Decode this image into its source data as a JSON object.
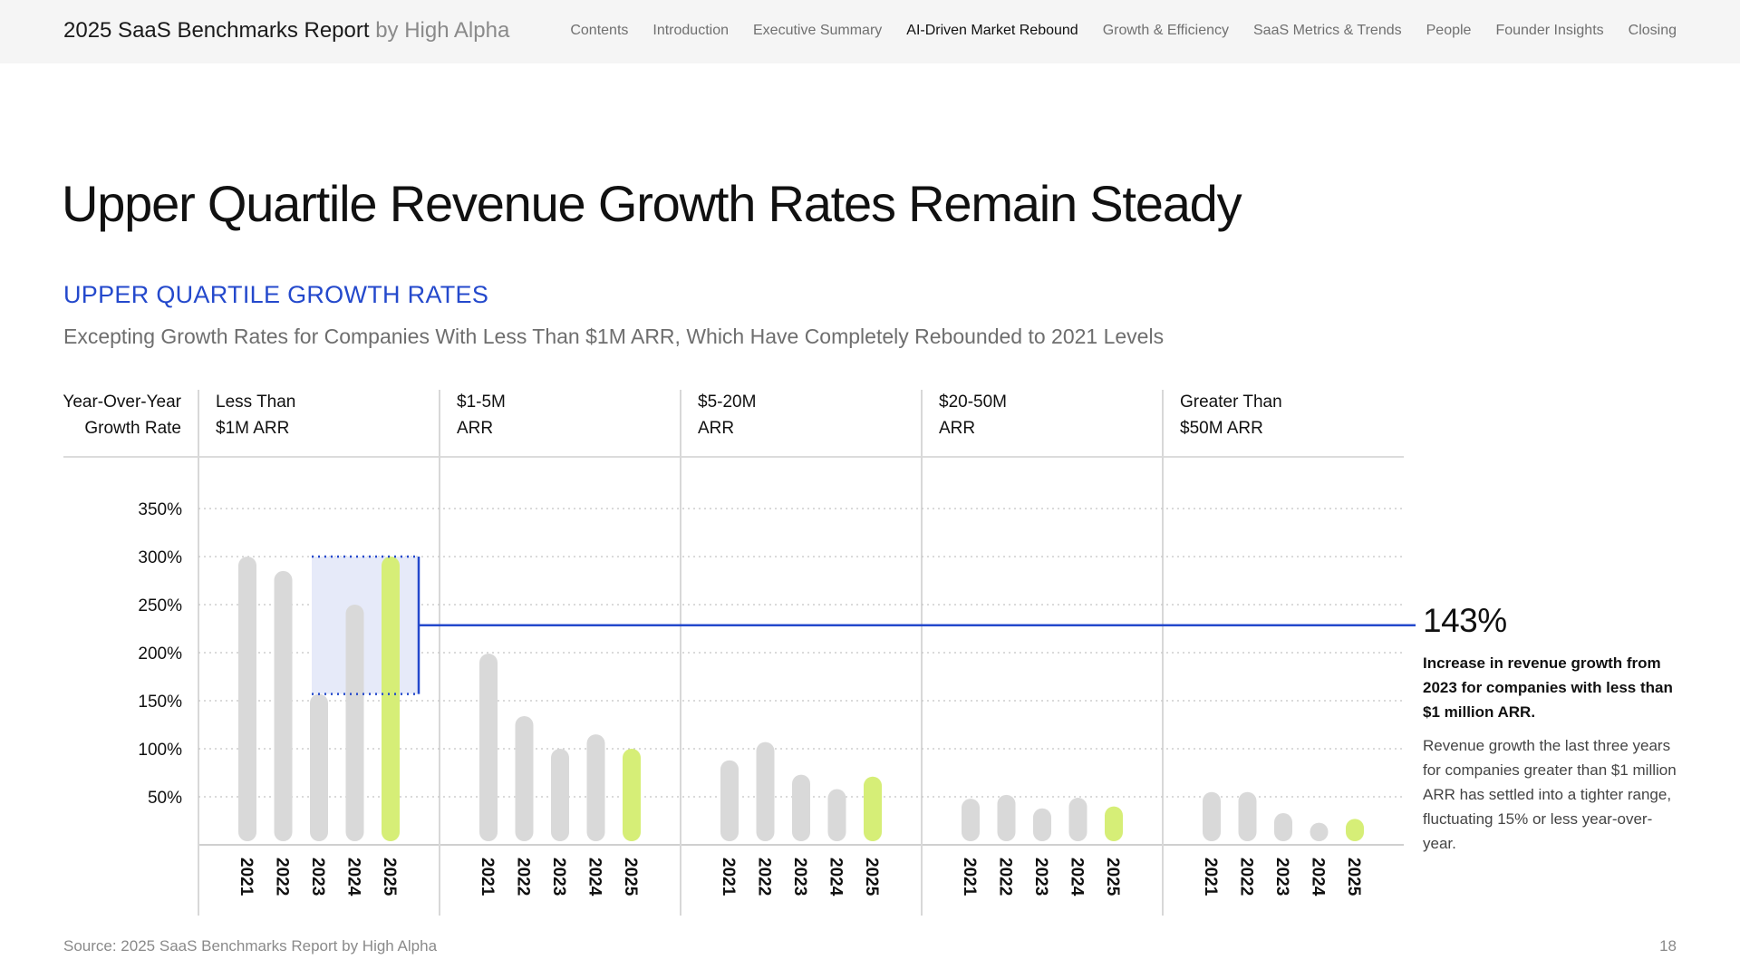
{
  "header": {
    "title": "2025 SaaS Benchmarks Report",
    "title_by": "by High Alpha",
    "nav": [
      {
        "label": "Contents",
        "active": false
      },
      {
        "label": "Introduction",
        "active": false
      },
      {
        "label": "Executive Summary",
        "active": false
      },
      {
        "label": "AI-Driven Market Rebound",
        "active": true
      },
      {
        "label": "Growth & Efficiency",
        "active": false
      },
      {
        "label": "SaaS Metrics & Trends",
        "active": false
      },
      {
        "label": "People",
        "active": false
      },
      {
        "label": "Founder Insights",
        "active": false
      },
      {
        "label": "Closing",
        "active": false
      }
    ]
  },
  "page": {
    "title": "Upper Quartile Revenue Growth Rates Remain Steady",
    "section_label": "UPPER QUARTILE GROWTH RATES",
    "subtitle": "Excepting Growth Rates for Companies With Less Than $1M ARR, Which Have Completely Rebounded to 2021 Levels"
  },
  "chart_data": {
    "type": "bar",
    "ylabel": [
      "Year-Over-Year",
      "Growth Rate"
    ],
    "yticks": [
      "350%",
      "300%",
      "250%",
      "200%",
      "150%",
      "100%",
      "50%"
    ],
    "ytick_values": [
      350,
      300,
      250,
      200,
      150,
      100,
      50
    ],
    "ylim": [
      0,
      350
    ],
    "grid": true,
    "categories": [
      "2021",
      "2022",
      "2023",
      "2024",
      "2025"
    ],
    "groups": [
      {
        "label": [
          "Less Than",
          "$1M ARR"
        ],
        "values": [
          300,
          285,
          157,
          250,
          300
        ]
      },
      {
        "label": [
          "$1-5M",
          "ARR"
        ],
        "values": [
          199,
          134,
          100,
          115,
          100
        ]
      },
      {
        "label": [
          "$5-20M",
          "ARR"
        ],
        "values": [
          88,
          107,
          73,
          58,
          71
        ]
      },
      {
        "label": [
          "$20-50M",
          "ARR"
        ],
        "values": [
          48,
          52,
          38,
          49,
          40
        ]
      },
      {
        "label": [
          "Greater Than",
          "$50M ARR"
        ],
        "values": [
          55,
          55,
          33,
          23,
          27
        ]
      }
    ],
    "colors": {
      "past": "#d9d9d9",
      "current": "#d6ee77",
      "highlight_fill": "#e6eaf9",
      "accent": "#2449cc"
    },
    "highlight": {
      "group": 0,
      "from": 157,
      "to": 300
    }
  },
  "callout": {
    "value": "143%",
    "description": "Increase in revenue growth from 2023 for companies with less than $1 million ARR.",
    "note": "Revenue growth the last three years for companies greater than $1 million ARR has settled into a tighter range, fluctuating 15% or less year-over-year."
  },
  "footer": {
    "source": "Source: 2025 SaaS Benchmarks Report by High Alpha",
    "page_number": "18"
  }
}
